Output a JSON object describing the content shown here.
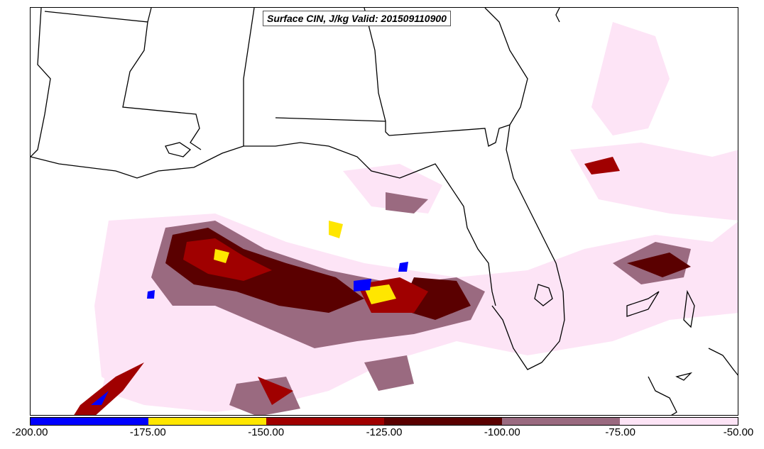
{
  "title": "Surface CIN, J/kg Valid: 201509110900",
  "colorbar": {
    "segments": [
      {
        "min": -200,
        "max": -175,
        "color": "#0000ff"
      },
      {
        "min": -175,
        "max": -150,
        "color": "#ffe600"
      },
      {
        "min": -150,
        "max": -125,
        "color": "#a00000"
      },
      {
        "min": -125,
        "max": -100,
        "color": "#5a0000"
      },
      {
        "min": -100,
        "max": -75,
        "color": "#9a6a80"
      },
      {
        "min": -75,
        "max": -50,
        "color": "#fde4f6"
      }
    ],
    "tick_labels": [
      "-200.00",
      "-175.00",
      "-150.00",
      "-125.00",
      "-100.00",
      "-75.00",
      "-50.00"
    ]
  }
}
